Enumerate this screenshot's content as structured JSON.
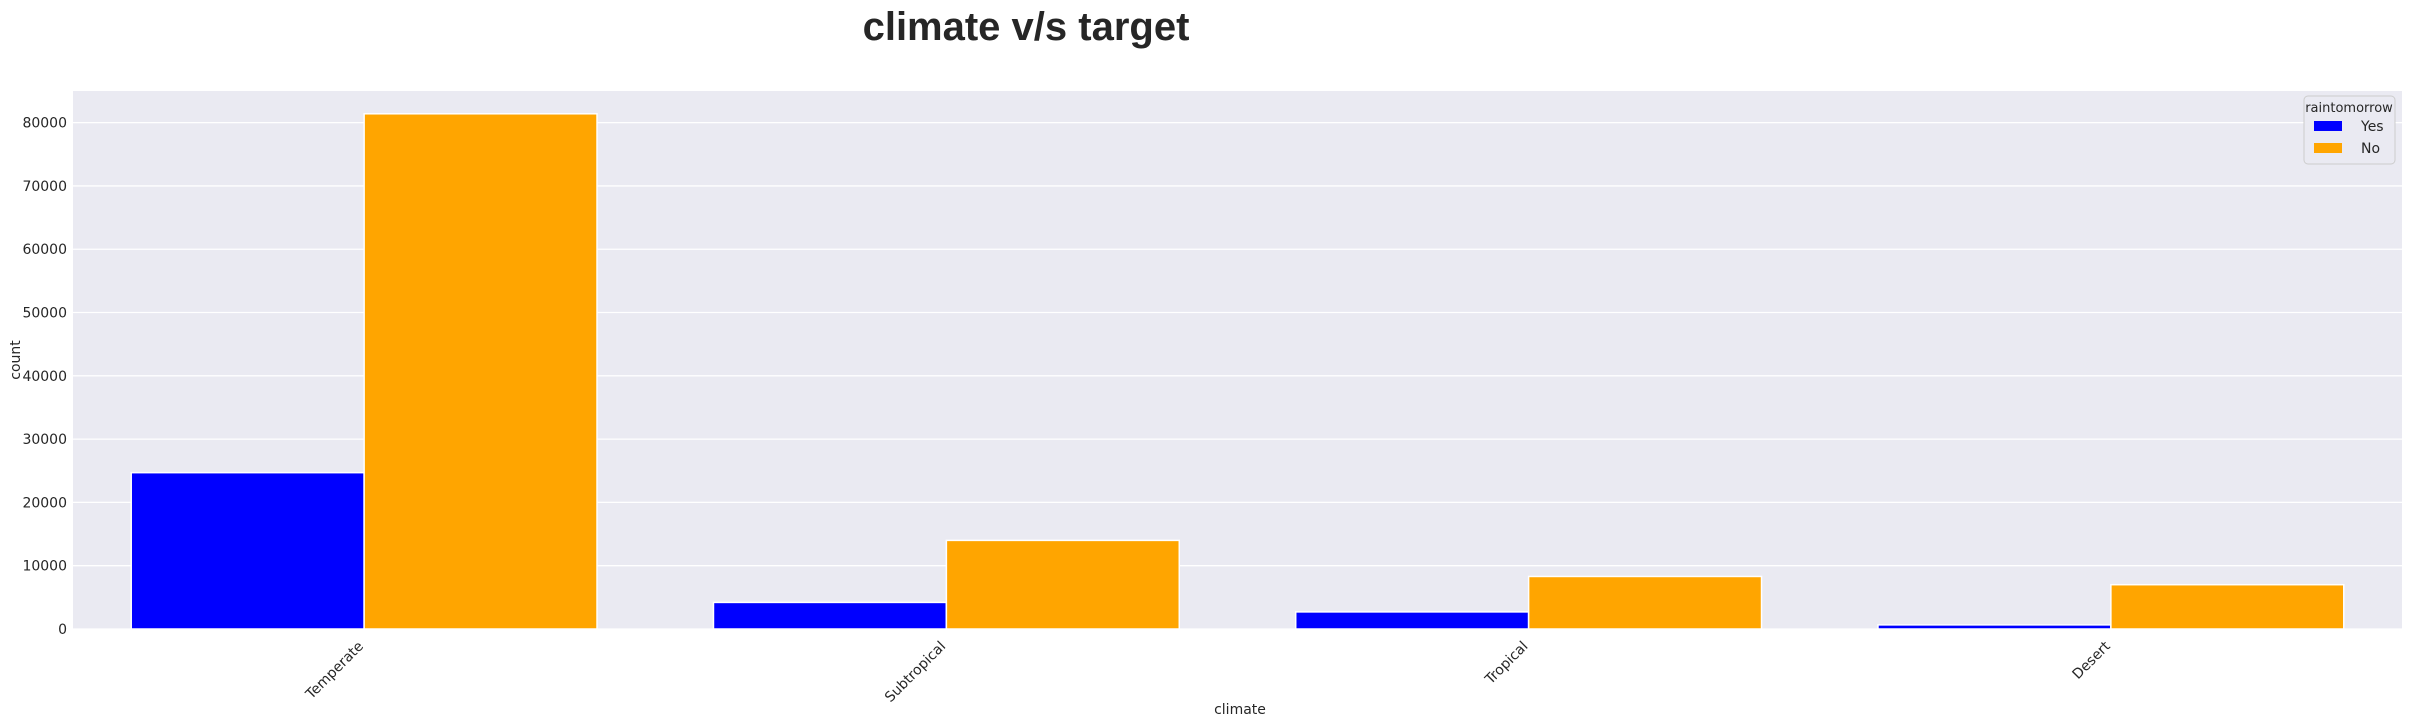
{
  "chart_data": {
    "type": "bar",
    "title": "climate v/s target",
    "xlabel": "climate",
    "ylabel": "count",
    "categories": [
      "Temperate",
      "Subtropical",
      "Tropical",
      "Desert"
    ],
    "series": [
      {
        "name": "Yes",
        "color": "#0000ff",
        "values": [
          24700,
          4200,
          2700,
          650
        ]
      },
      {
        "name": "No",
        "color": "#ffa500",
        "values": [
          81400,
          14000,
          8300,
          7000
        ]
      }
    ],
    "ylim": [
      0,
      85000
    ],
    "yticks": [
      0,
      10000,
      20000,
      30000,
      40000,
      50000,
      60000,
      70000,
      80000
    ],
    "grid": true,
    "legend": {
      "title": "raintomorrow",
      "placement": "top-right"
    },
    "background_color": "#eaeaf2",
    "xtick_rotation": 45
  }
}
